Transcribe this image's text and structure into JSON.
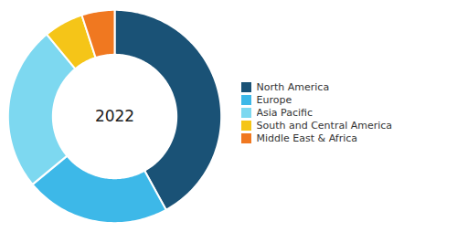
{
  "chart_data": {
    "type": "pie",
    "categories": [
      "North America",
      "Europe",
      "Asia Pacific",
      "South and Central America",
      "Middle East & Africa"
    ],
    "values": [
      42,
      22,
      25,
      6,
      5
    ],
    "colors": [
      "#1a5276",
      "#3db8e8",
      "#7dd8f0",
      "#f5c518",
      "#f07820"
    ],
    "annotations": [
      "2022"
    ],
    "legend": "right"
  }
}
